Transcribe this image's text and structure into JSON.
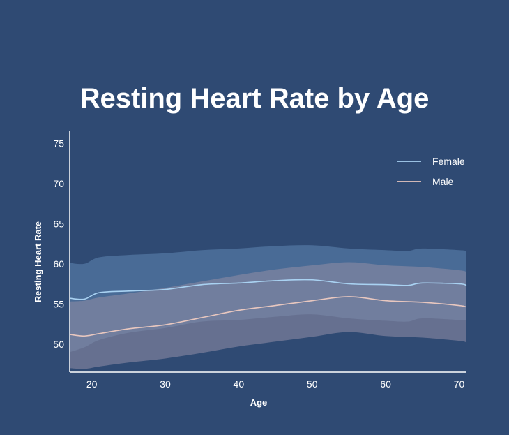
{
  "chart_data": {
    "type": "line",
    "title": "Resting Heart Rate by Age",
    "xlabel": "Age",
    "ylabel": "Resting Heart Rate",
    "xlim": [
      17,
      71
    ],
    "ylim": [
      46.5,
      76.5
    ],
    "x_ticks": [
      20,
      30,
      40,
      50,
      60,
      70
    ],
    "y_ticks": [
      50,
      55,
      60,
      65,
      70,
      75
    ],
    "grid": false,
    "legend_position": "top-right",
    "series": [
      {
        "name": "Female",
        "color": "#a9d2f2",
        "band_color": "#5c82ad",
        "x": [
          17,
          19,
          21,
          25,
          30,
          35,
          40,
          45,
          50,
          55,
          60,
          63,
          65,
          70,
          71
        ],
        "values": [
          55.7,
          55.6,
          56.4,
          56.6,
          56.8,
          57.4,
          57.6,
          57.9,
          58.0,
          57.5,
          57.4,
          57.3,
          57.6,
          57.5,
          57.3
        ],
        "lower": [
          49.0,
          49.6,
          50.5,
          51.4,
          52.0,
          52.8,
          53.0,
          53.4,
          53.7,
          53.2,
          52.9,
          52.8,
          53.2,
          53.0,
          52.9
        ],
        "upper": [
          60.1,
          60.0,
          60.8,
          61.1,
          61.3,
          61.7,
          61.9,
          62.2,
          62.3,
          61.9,
          61.7,
          61.6,
          61.9,
          61.7,
          61.6
        ]
      },
      {
        "name": "Male",
        "color": "#e8c7bf",
        "band_color": "#8c8ba4",
        "x": [
          17,
          19,
          21,
          25,
          30,
          35,
          40,
          45,
          50,
          55,
          60,
          65,
          70,
          71
        ],
        "values": [
          51.2,
          51.0,
          51.3,
          51.9,
          52.4,
          53.3,
          54.2,
          54.8,
          55.4,
          55.9,
          55.4,
          55.2,
          54.8,
          54.6
        ],
        "lower": [
          47.0,
          46.9,
          47.2,
          47.7,
          48.2,
          48.9,
          49.7,
          50.3,
          50.9,
          51.5,
          51.0,
          50.8,
          50.4,
          50.2
        ],
        "upper": [
          55.3,
          55.4,
          55.8,
          56.3,
          57.0,
          57.8,
          58.6,
          59.3,
          59.8,
          60.2,
          59.8,
          59.6,
          59.2,
          59.0
        ]
      }
    ]
  }
}
